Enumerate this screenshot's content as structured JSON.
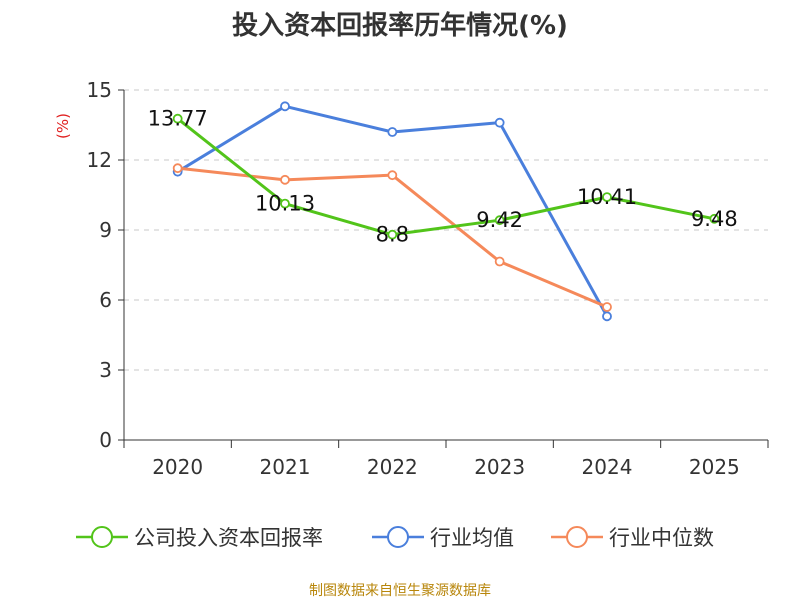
{
  "chart_data": {
    "type": "line",
    "title": "投入资本回报率历年情况(%)",
    "ylabel": "(%)",
    "xlabel": "",
    "categories": [
      "2020",
      "2021",
      "2022",
      "2023",
      "2024",
      "2025"
    ],
    "ylim": [
      0,
      15
    ],
    "yticks": [
      "0",
      "3",
      "6",
      "9",
      "12",
      "15"
    ],
    "grid": true,
    "legend_position": "bottom",
    "series": [
      {
        "name": "公司投入资本回报率",
        "color": "#52c41a",
        "values": [
          13.77,
          10.13,
          8.8,
          9.42,
          10.41,
          9.48
        ],
        "labels": [
          "13.77",
          "10.13",
          "8.8",
          "9.42",
          "10.41",
          "9.48"
        ]
      },
      {
        "name": "行业均值",
        "color": "#4a7fdc",
        "values": [
          11.5,
          14.3,
          13.2,
          13.6,
          5.3,
          null
        ]
      },
      {
        "name": "行业中位数",
        "color": "#f5895a",
        "values": [
          11.65,
          11.15,
          11.35,
          7.65,
          5.7,
          null
        ]
      }
    ]
  },
  "source": "制图数据来自恒生聚源数据库"
}
